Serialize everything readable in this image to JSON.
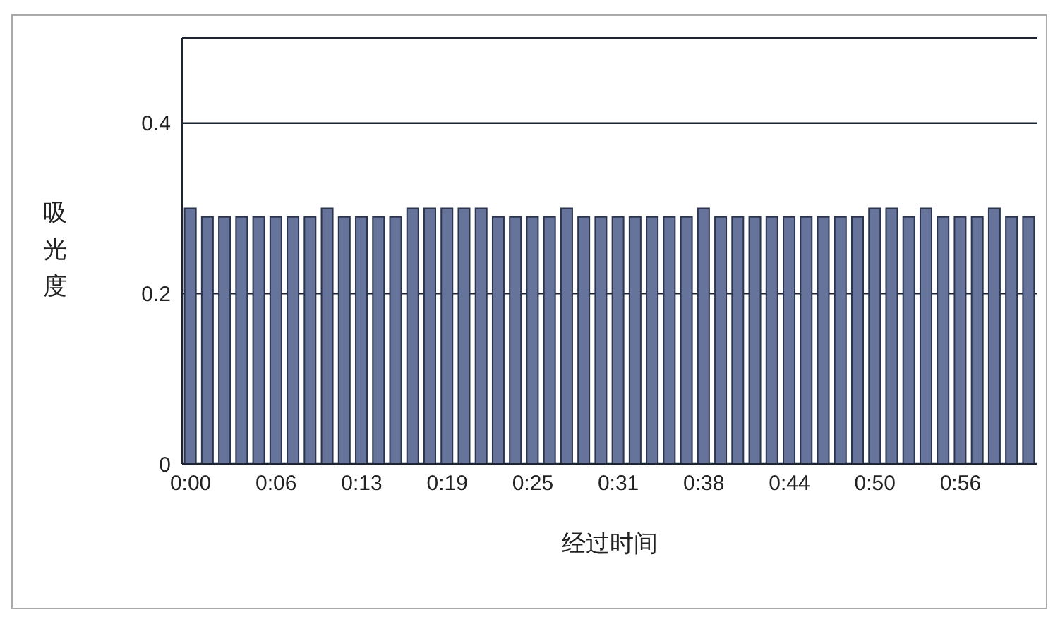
{
  "chart_data": {
    "type": "bar",
    "xlabel": "经过时间",
    "ylabel": "吸光度",
    "categories": [
      "0:00",
      null,
      null,
      null,
      null,
      "0:06",
      null,
      null,
      null,
      null,
      "0:13",
      null,
      null,
      null,
      null,
      "0:19",
      null,
      null,
      null,
      null,
      "0:25",
      null,
      null,
      null,
      null,
      "0:31",
      null,
      null,
      null,
      null,
      "0:38",
      null,
      null,
      null,
      null,
      "0:44",
      null,
      null,
      null,
      null,
      "0:50",
      null,
      null,
      null,
      null,
      "0:56",
      null,
      null,
      null,
      null
    ],
    "values": [
      0.3,
      0.29,
      0.29,
      0.29,
      0.29,
      0.29,
      0.29,
      0.29,
      0.3,
      0.29,
      0.29,
      0.29,
      0.29,
      0.3,
      0.3,
      0.3,
      0.3,
      0.3,
      0.29,
      0.29,
      0.29,
      0.29,
      0.3,
      0.29,
      0.29,
      0.29,
      0.29,
      0.29,
      0.29,
      0.29,
      0.3,
      0.29,
      0.29,
      0.29,
      0.29,
      0.29,
      0.29,
      0.29,
      0.29,
      0.29,
      0.3,
      0.3,
      0.29,
      0.3,
      0.29,
      0.29,
      0.29,
      0.3,
      0.29,
      0.29
    ],
    "color": "#66739a",
    "ylim": [
      0,
      0.5
    ],
    "yticks": [
      0,
      0.2,
      0.4
    ],
    "grid": "y",
    "legend": false
  }
}
